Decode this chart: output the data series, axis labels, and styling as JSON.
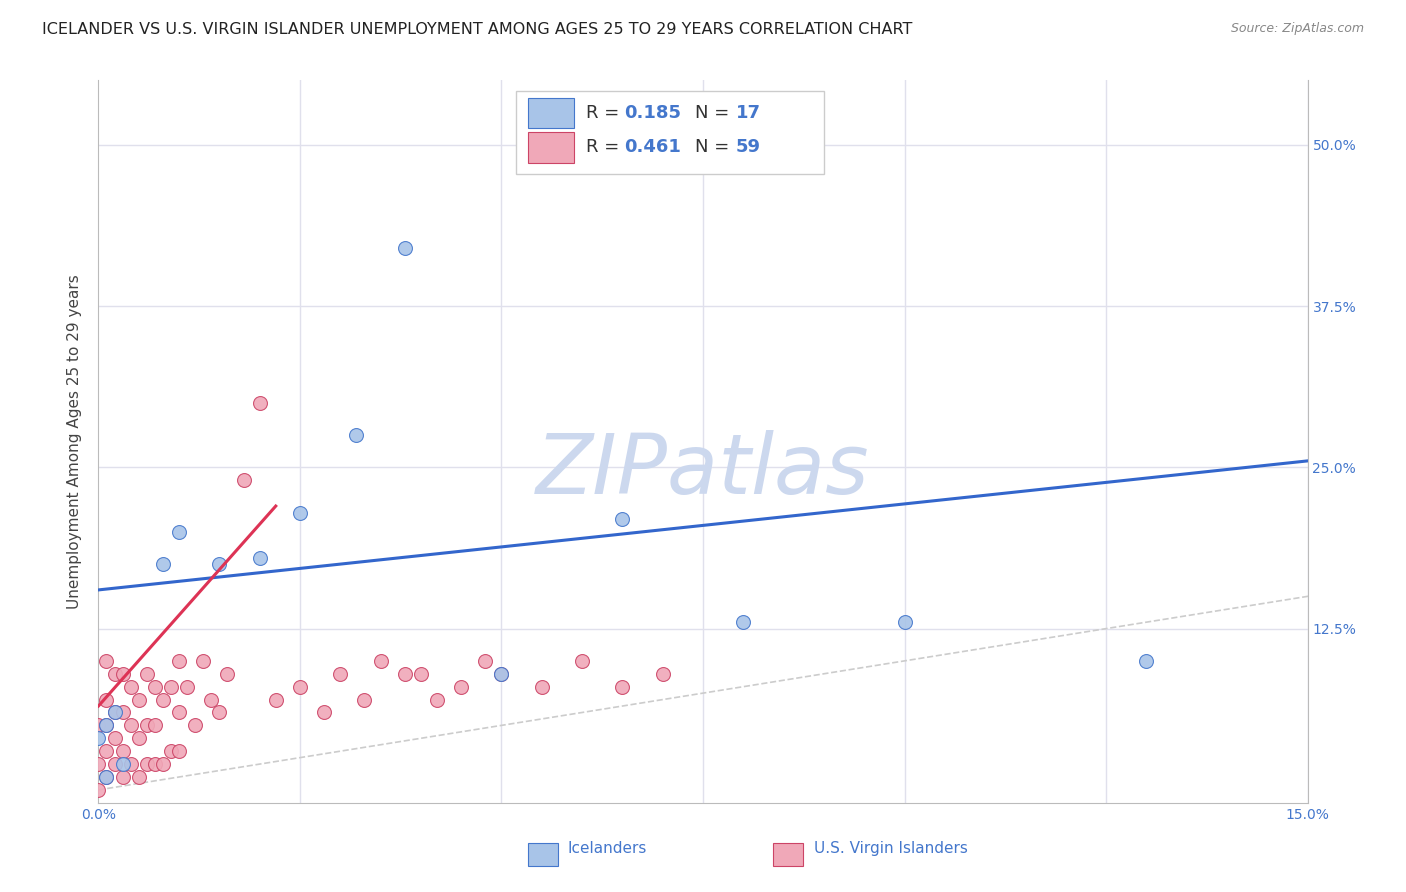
{
  "title": "ICELANDER VS U.S. VIRGIN ISLANDER UNEMPLOYMENT AMONG AGES 25 TO 29 YEARS CORRELATION CHART",
  "source": "Source: ZipAtlas.com",
  "ylabel": "Unemployment Among Ages 25 to 29 years",
  "xlim": [
    0,
    0.15
  ],
  "ylim": [
    -0.01,
    0.55
  ],
  "icelander_color": "#a8c4e8",
  "icelander_edge": "#4477cc",
  "virgin_color": "#f0a8b8",
  "virgin_edge": "#cc4466",
  "blue_line_color": "#3366cc",
  "pink_line_color": "#dd3355",
  "grid_color": "#e0e0ec",
  "diag_color": "#cccccc",
  "watermark_color": "#ccd8ee",
  "bg_color": "#ffffff",
  "tick_color": "#4477cc",
  "title_color": "#222222",
  "source_color": "#888888",
  "ylabel_color": "#444444",
  "legend_r1": "0.185",
  "legend_n1": "17",
  "legend_r2": "0.461",
  "legend_n2": "59",
  "ice_x": [
    0.0,
    0.001,
    0.001,
    0.002,
    0.003,
    0.008,
    0.01,
    0.015,
    0.02,
    0.025,
    0.032,
    0.038,
    0.05,
    0.065,
    0.08,
    0.1,
    0.13
  ],
  "ice_y": [
    0.04,
    0.05,
    0.01,
    0.06,
    0.02,
    0.175,
    0.2,
    0.175,
    0.18,
    0.215,
    0.275,
    0.42,
    0.09,
    0.21,
    0.13,
    0.13,
    0.1
  ],
  "vi_x": [
    0.0,
    0.0,
    0.0,
    0.001,
    0.001,
    0.001,
    0.001,
    0.001,
    0.002,
    0.002,
    0.002,
    0.002,
    0.003,
    0.003,
    0.003,
    0.003,
    0.004,
    0.004,
    0.004,
    0.005,
    0.005,
    0.005,
    0.006,
    0.006,
    0.006,
    0.007,
    0.007,
    0.007,
    0.008,
    0.008,
    0.009,
    0.009,
    0.01,
    0.01,
    0.01,
    0.011,
    0.012,
    0.013,
    0.014,
    0.015,
    0.016,
    0.018,
    0.02,
    0.022,
    0.025,
    0.028,
    0.03,
    0.033,
    0.035,
    0.038,
    0.04,
    0.042,
    0.045,
    0.048,
    0.05,
    0.055,
    0.06,
    0.065,
    0.07
  ],
  "vi_y": [
    0.0,
    0.02,
    0.05,
    0.01,
    0.03,
    0.05,
    0.07,
    0.1,
    0.02,
    0.04,
    0.06,
    0.09,
    0.01,
    0.03,
    0.06,
    0.09,
    0.02,
    0.05,
    0.08,
    0.01,
    0.04,
    0.07,
    0.02,
    0.05,
    0.09,
    0.02,
    0.05,
    0.08,
    0.02,
    0.07,
    0.03,
    0.08,
    0.03,
    0.06,
    0.1,
    0.08,
    0.05,
    0.1,
    0.07,
    0.06,
    0.09,
    0.24,
    0.3,
    0.07,
    0.08,
    0.06,
    0.09,
    0.07,
    0.1,
    0.09,
    0.09,
    0.07,
    0.08,
    0.1,
    0.09,
    0.08,
    0.1,
    0.08,
    0.09
  ],
  "blue_line_x": [
    0.0,
    0.15
  ],
  "blue_line_y": [
    0.155,
    0.255
  ],
  "pink_line_x": [
    0.0,
    0.022
  ],
  "pink_line_y": [
    0.065,
    0.22
  ],
  "title_fontsize": 11.5,
  "ylabel_fontsize": 11,
  "tick_fontsize": 10,
  "legend_fontsize": 13,
  "watermark_fontsize": 60,
  "marker_size": 100
}
